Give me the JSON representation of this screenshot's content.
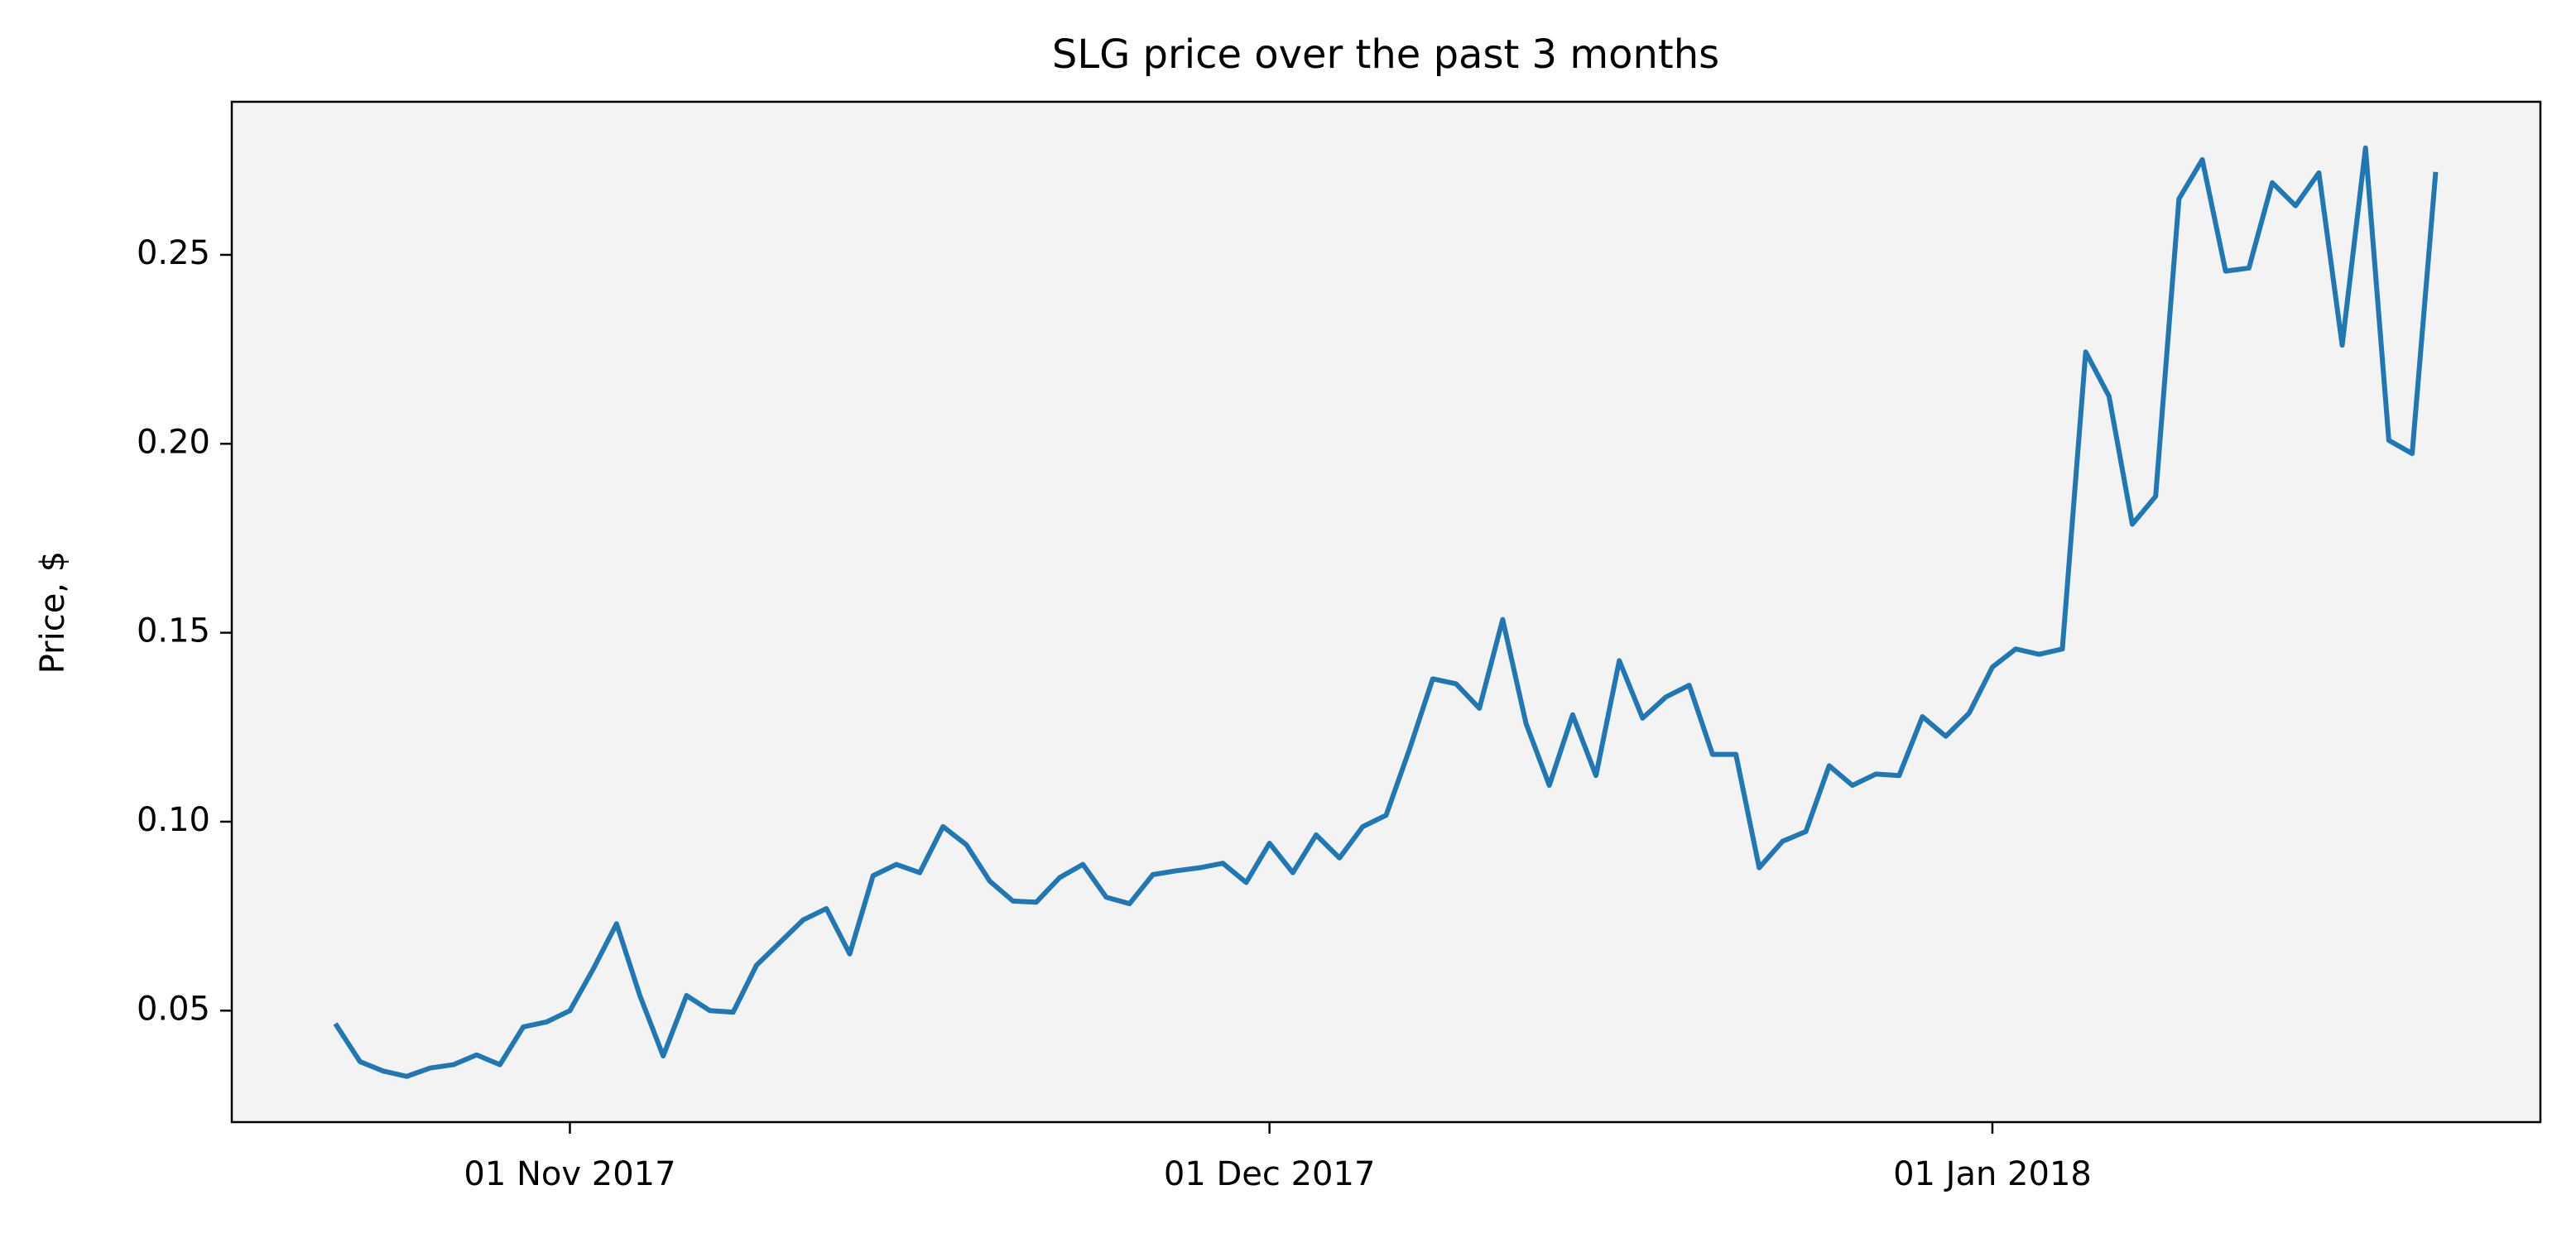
{
  "chart_data": {
    "type": "line",
    "title": "SLG price over the past 3 months",
    "y_label": "Price, $",
    "color": "#1f77b4",
    "background": "#f3f3f3",
    "grid": false,
    "x": [
      "2017-10-22",
      "2017-10-23",
      "2017-10-24",
      "2017-10-25",
      "2017-10-26",
      "2017-10-27",
      "2017-10-28",
      "2017-10-29",
      "2017-10-30",
      "2017-10-31",
      "2017-11-01",
      "2017-11-02",
      "2017-11-03",
      "2017-11-04",
      "2017-11-05",
      "2017-11-06",
      "2017-11-07",
      "2017-11-08",
      "2017-11-09",
      "2017-11-10",
      "2017-11-11",
      "2017-11-12",
      "2017-11-13",
      "2017-11-14",
      "2017-11-15",
      "2017-11-16",
      "2017-11-17",
      "2017-11-18",
      "2017-11-19",
      "2017-11-20",
      "2017-11-21",
      "2017-11-22",
      "2017-11-23",
      "2017-11-24",
      "2017-11-25",
      "2017-11-26",
      "2017-11-27",
      "2017-11-28",
      "2017-11-29",
      "2017-11-30",
      "2017-12-01",
      "2017-12-02",
      "2017-12-03",
      "2017-12-04",
      "2017-12-05",
      "2017-12-06",
      "2017-12-07",
      "2017-12-08",
      "2017-12-09",
      "2017-12-10",
      "2017-12-11",
      "2017-12-12",
      "2017-12-13",
      "2017-12-14",
      "2017-12-15",
      "2017-12-16",
      "2017-12-17",
      "2017-12-18",
      "2017-12-19",
      "2017-12-20",
      "2017-12-21",
      "2017-12-22",
      "2017-12-23",
      "2017-12-24",
      "2017-12-25",
      "2017-12-26",
      "2017-12-27",
      "2017-12-28",
      "2017-12-29",
      "2017-12-30",
      "2017-12-31",
      "2018-01-01",
      "2018-01-02",
      "2018-01-03",
      "2018-01-04",
      "2018-01-05",
      "2018-01-06",
      "2018-01-07",
      "2018-01-08",
      "2018-01-09",
      "2018-01-10",
      "2018-01-11",
      "2018-01-12",
      "2018-01-13",
      "2018-01-14",
      "2018-01-15",
      "2018-01-16",
      "2018-01-17",
      "2018-01-18",
      "2018-01-19",
      "2018-01-20"
    ],
    "values": [
      0.046,
      0.0365,
      0.034,
      0.0326,
      0.0348,
      0.0357,
      0.0383,
      0.0357,
      0.0457,
      0.047,
      0.05,
      0.061,
      0.073,
      0.054,
      0.038,
      0.054,
      0.05,
      0.0496,
      0.062,
      0.068,
      0.074,
      0.077,
      0.065,
      0.0857,
      0.0887,
      0.0865,
      0.0987,
      0.0939,
      0.0843,
      0.079,
      0.0787,
      0.0852,
      0.0887,
      0.08,
      0.0783,
      0.086,
      0.087,
      0.0878,
      0.089,
      0.0839,
      0.0943,
      0.0865,
      0.0965,
      0.0904,
      0.0987,
      0.1017,
      0.1191,
      0.1378,
      0.1365,
      0.13,
      0.1535,
      0.126,
      0.1096,
      0.1283,
      0.1122,
      0.1426,
      0.1274,
      0.133,
      0.1361,
      0.1178,
      0.1178,
      0.0878,
      0.0948,
      0.0974,
      0.1148,
      0.1096,
      0.1126,
      0.1122,
      0.1278,
      0.1226,
      0.1287,
      0.1409,
      0.1457,
      0.1443,
      0.1457,
      0.2243,
      0.2126,
      0.1787,
      0.1861,
      0.2648,
      0.2752,
      0.2457,
      0.2465,
      0.2691,
      0.263,
      0.2717,
      0.2261,
      0.2783,
      0.2009,
      0.1974,
      0.2713
    ],
    "xlim": [
      "2017-10-17T12:00:00Z",
      "2018-01-24T12:00:00Z"
    ],
    "xticks": [
      {
        "value": "2017-11-01",
        "label": "01 Nov 2017"
      },
      {
        "value": "2017-12-01",
        "label": "01 Dec 2017"
      },
      {
        "value": "2018-01-01",
        "label": "01 Jan 2018"
      }
    ],
    "ylim": [
      0.0205,
      0.2905
    ],
    "yticks": [
      0.05,
      {
        "value": 0.1,
        "label": "0.10"
      },
      0.15,
      {
        "value": 0.2,
        "label": "0.20"
      },
      0.25
    ]
  }
}
